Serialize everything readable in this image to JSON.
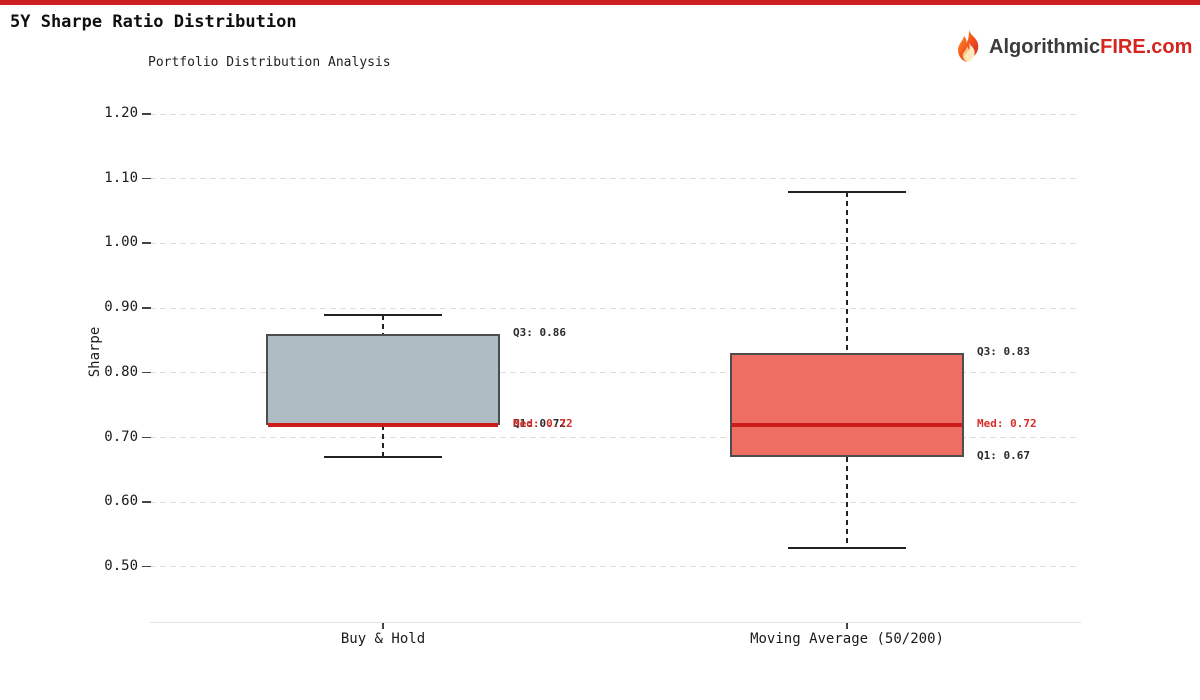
{
  "page": {
    "title": "5Y Sharpe Ratio Distribution",
    "logo": {
      "part1": "Algorithmic",
      "part2": "FIRE",
      "part3": ".com"
    }
  },
  "chart_data": {
    "type": "boxplot",
    "title": "Portfolio Distribution Analysis",
    "ylabel": "Sharpe",
    "ylim": [
      0.42,
      1.23
    ],
    "grid": "horizontal-dashed",
    "legend": "none",
    "ytick_labels": [
      "1.20",
      "1.10",
      "1.00",
      "0.90",
      "0.80",
      "0.70",
      "0.60",
      "0.50"
    ],
    "categories": [
      "Buy & Hold",
      "Moving Average (50/200)"
    ],
    "series": [
      {
        "name": "Buy & Hold",
        "whisker_high": 0.89,
        "q3": 0.86,
        "median": 0.72,
        "q1": 0.72,
        "whisker_low": 0.67,
        "box_color": "#aebcc4",
        "annotations": [
          {
            "text": "Q3: 0.86",
            "value": 0.86,
            "color": "#2b2b2b"
          },
          {
            "text": "Q1: 0.72",
            "value": 0.72,
            "color": "#2b2b2b"
          },
          {
            "text": "Med: 0.72",
            "value": 0.72,
            "color": "#d62f2a"
          }
        ]
      },
      {
        "name": "Moving Average (50/200)",
        "whisker_high": 1.08,
        "q3": 0.83,
        "median": 0.72,
        "q1": 0.67,
        "whisker_low": 0.53,
        "box_color": "#ee6e64",
        "annotations": [
          {
            "text": "Q3: 0.83",
            "value": 0.83,
            "color": "#2b2b2b"
          },
          {
            "text": "Med: 0.72",
            "value": 0.72,
            "color": "#d62f2a"
          },
          {
            "text": "Q1: 0.67",
            "value": 0.67,
            "color": "#2b2b2b"
          }
        ]
      }
    ],
    "colors": {
      "median_line": "#cc1c1c",
      "box_border": "#4d4d4d",
      "whisker": "#222222",
      "gridline": "#dcdcdc",
      "accent_bar": "#cc2020",
      "annotation_red": "#d62f2a",
      "annotation_dark": "#2b2b2b"
    }
  }
}
